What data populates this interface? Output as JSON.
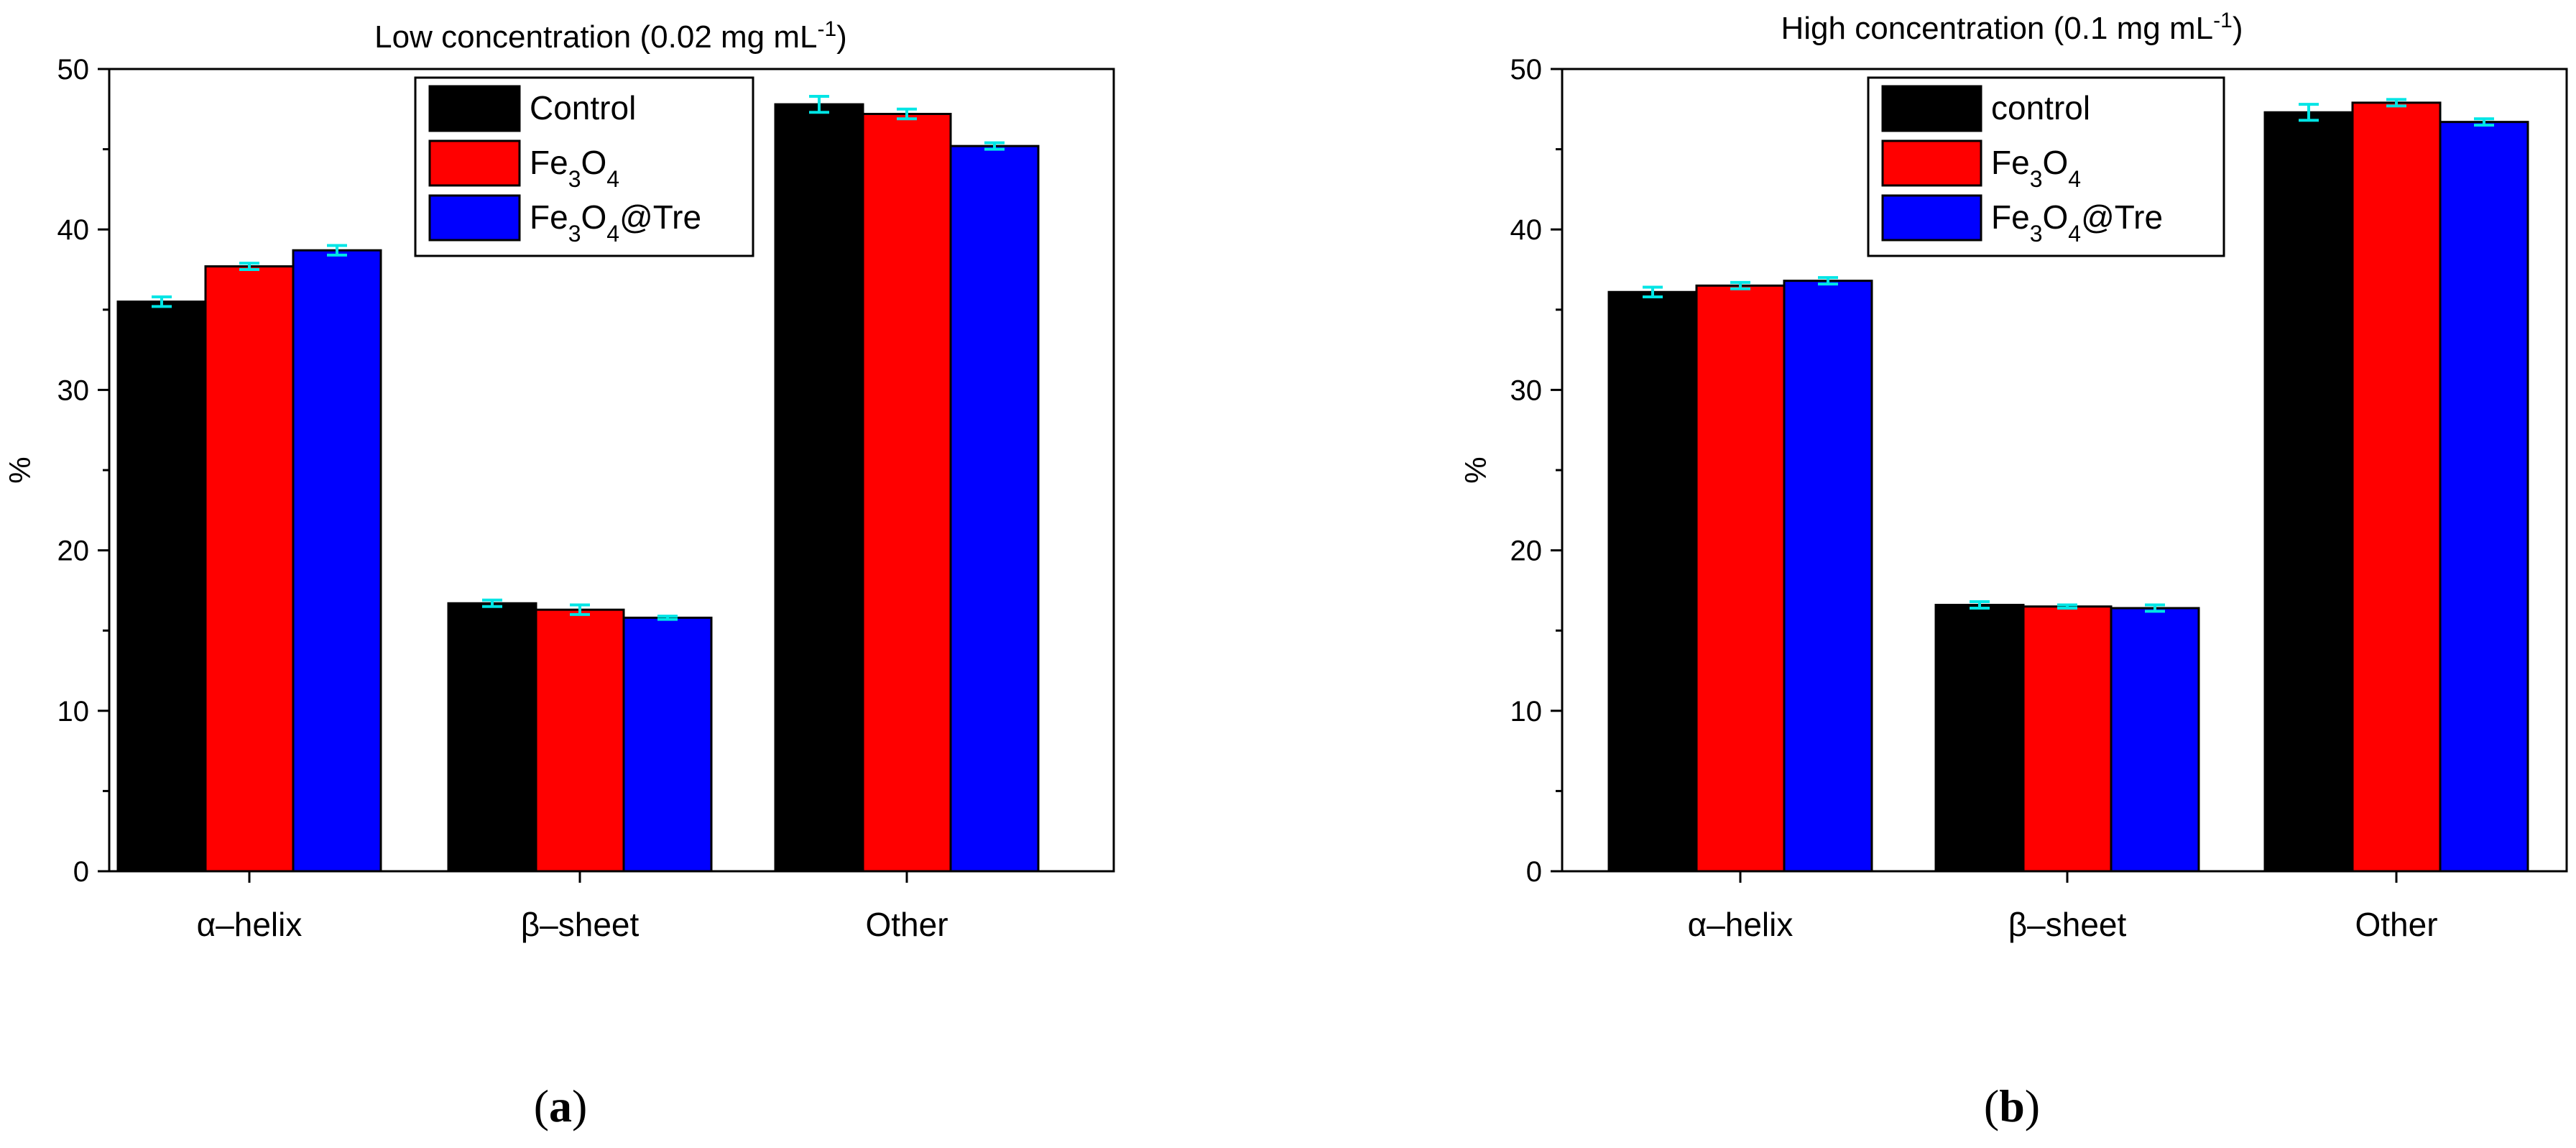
{
  "chart_data": [
    {
      "type": "bar",
      "panel_label": "(a)",
      "title": {
        "text": "Low concentration (0.02 mg mL",
        "sup": "-1",
        "tail": ")"
      },
      "xlabel": "",
      "ylabel": "%",
      "ylim": [
        0,
        50
      ],
      "yticks": [
        0,
        10,
        20,
        30,
        40,
        50
      ],
      "categories": [
        "α–helix",
        "β–sheet",
        "Other"
      ],
      "series": [
        {
          "name": "Control",
          "name_parts": [
            [
              "Control",
              ""
            ]
          ],
          "color": "#000000",
          "values": [
            35.5,
            16.7,
            47.8
          ],
          "errors": [
            0.3,
            0.2,
            0.5
          ]
        },
        {
          "name": "Fe3O4",
          "name_parts": [
            [
              "Fe",
              ""
            ],
            [
              "3",
              "sub"
            ],
            [
              "O",
              ""
            ],
            [
              "4",
              "sub"
            ]
          ],
          "color": "#ff0000",
          "values": [
            37.7,
            16.3,
            47.2
          ],
          "errors": [
            0.2,
            0.3,
            0.3
          ]
        },
        {
          "name": "Fe3O4@Tre",
          "name_parts": [
            [
              "Fe",
              ""
            ],
            [
              "3",
              "sub"
            ],
            [
              "O",
              ""
            ],
            [
              "4",
              "sub"
            ],
            [
              "@Tre",
              ""
            ]
          ],
          "color": "#0000ff",
          "values": [
            38.7,
            15.8,
            45.2
          ],
          "errors": [
            0.3,
            0.1,
            0.2
          ]
        }
      ],
      "error_bar_color": "#00e5e5",
      "legend_position": "top-center"
    },
    {
      "type": "bar",
      "panel_label": "(b)",
      "title": {
        "text": "High concentration (0.1 mg mL",
        "sup": "-1",
        "tail": ")"
      },
      "xlabel": "",
      "ylabel": "%",
      "ylim": [
        0,
        50
      ],
      "yticks": [
        0,
        10,
        20,
        30,
        40,
        50
      ],
      "categories": [
        "α–helix",
        "β–sheet",
        "Other"
      ],
      "series": [
        {
          "name": "control",
          "name_parts": [
            [
              "control",
              ""
            ]
          ],
          "color": "#000000",
          "values": [
            36.1,
            16.6,
            47.3
          ],
          "errors": [
            0.3,
            0.2,
            0.5
          ]
        },
        {
          "name": "Fe3O4",
          "name_parts": [
            [
              "Fe",
              ""
            ],
            [
              "3",
              "sub"
            ],
            [
              "O",
              ""
            ],
            [
              "4",
              "sub"
            ]
          ],
          "color": "#ff0000",
          "values": [
            36.5,
            16.5,
            47.9
          ],
          "errors": [
            0.2,
            0.1,
            0.2
          ]
        },
        {
          "name": "Fe3O4@Tre",
          "name_parts": [
            [
              "Fe",
              ""
            ],
            [
              "3",
              "sub"
            ],
            [
              "O",
              ""
            ],
            [
              "4",
              "sub"
            ],
            [
              "@Tre",
              ""
            ]
          ],
          "color": "#0000ff",
          "values": [
            36.8,
            16.4,
            46.7
          ],
          "errors": [
            0.2,
            0.2,
            0.2
          ]
        }
      ],
      "error_bar_color": "#00e5e5",
      "legend_position": "top-left"
    }
  ]
}
